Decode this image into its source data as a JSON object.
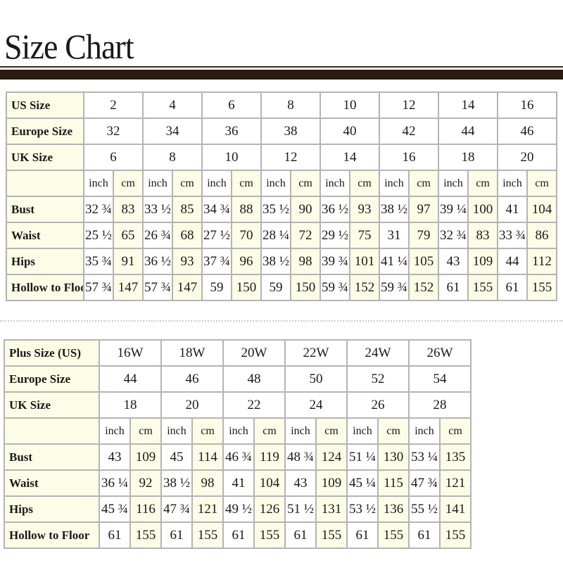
{
  "title": "Size Chart",
  "standard": {
    "size_rows": [
      {
        "label": "US Size",
        "values": [
          "2",
          "4",
          "6",
          "8",
          "10",
          "12",
          "14",
          "16"
        ]
      },
      {
        "label": "Europe Size",
        "values": [
          "32",
          "34",
          "36",
          "38",
          "40",
          "42",
          "44",
          "46"
        ]
      },
      {
        "label": "UK Size",
        "values": [
          "6",
          "8",
          "10",
          "12",
          "14",
          "16",
          "18",
          "20"
        ]
      }
    ],
    "units": [
      "inch",
      "cm"
    ],
    "measure_rows": [
      {
        "label": "Bust",
        "values": [
          "32 ¾",
          "83",
          "33 ½",
          "85",
          "34 ¾",
          "88",
          "35 ½",
          "90",
          "36 ½",
          "93",
          "38 ½",
          "97",
          "39 ¼",
          "100",
          "41",
          "104"
        ]
      },
      {
        "label": "Waist",
        "values": [
          "25 ½",
          "65",
          "26 ¾",
          "68",
          "27 ½",
          "70",
          "28 ¼",
          "72",
          "29 ½",
          "75",
          "31",
          "79",
          "32 ¾",
          "83",
          "33 ¾",
          "86"
        ]
      },
      {
        "label": "Hips",
        "values": [
          "35 ¾",
          "91",
          "36 ½",
          "93",
          "37 ¾",
          "96",
          "38 ½",
          "98",
          "39 ¾",
          "101",
          "41 ¼",
          "105",
          "43",
          "109",
          "44",
          "112"
        ]
      },
      {
        "label": "Hollow to Floor",
        "values": [
          "57 ¾",
          "147",
          "57 ¾",
          "147",
          "59",
          "150",
          "59",
          "150",
          "59 ¾",
          "152",
          "59 ¾",
          "152",
          "61",
          "155",
          "61",
          "155"
        ]
      }
    ]
  },
  "plus": {
    "size_rows": [
      {
        "label": "Plus Size (US)",
        "values": [
          "16W",
          "18W",
          "20W",
          "22W",
          "24W",
          "26W"
        ]
      },
      {
        "label": "Europe Size",
        "values": [
          "44",
          "46",
          "48",
          "50",
          "52",
          "54"
        ]
      },
      {
        "label": "UK Size",
        "values": [
          "18",
          "20",
          "22",
          "24",
          "26",
          "28"
        ]
      }
    ],
    "units": [
      "inch",
      "cm"
    ],
    "measure_rows": [
      {
        "label": "Bust",
        "values": [
          "43",
          "109",
          "45",
          "114",
          "46 ¾",
          "119",
          "48 ¾",
          "124",
          "51 ¼",
          "130",
          "53 ¼",
          "135"
        ]
      },
      {
        "label": "Waist",
        "values": [
          "36 ¼",
          "92",
          "38 ½",
          "98",
          "41",
          "104",
          "43",
          "109",
          "45 ¼",
          "115",
          "47 ¾",
          "121"
        ]
      },
      {
        "label": "Hips",
        "values": [
          "45 ¾",
          "116",
          "47 ¾",
          "121",
          "49 ½",
          "126",
          "51 ½",
          "131",
          "53 ½",
          "136",
          "55 ½",
          "141"
        ]
      },
      {
        "label": "Hollow to Floor",
        "values": [
          "61",
          "155",
          "61",
          "155",
          "61",
          "155",
          "61",
          "155",
          "61",
          "155",
          "61",
          "155"
        ]
      }
    ]
  },
  "colors": {
    "cream": "#fdfce6",
    "bar": "#2a1a12",
    "border": "#b4b4b4"
  }
}
